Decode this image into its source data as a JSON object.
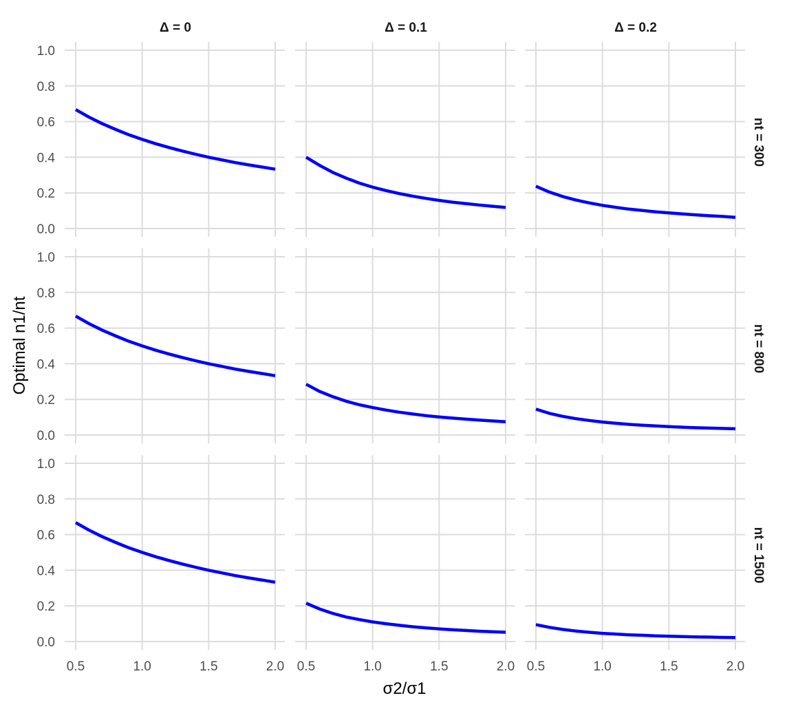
{
  "chart_data": {
    "type": "line",
    "facet_layout": "grid",
    "colors": {
      "line": "#0000ff",
      "grid": "#dcdcdc",
      "background": "#ffffff"
    },
    "xlabel": "σ2/σ1",
    "ylabel": "Optimal n1/nt",
    "xlim": [
      0.5,
      2.0
    ],
    "ylim": [
      0.0,
      1.0
    ],
    "x_ticks": [
      "0.5",
      "1.0",
      "1.5",
      "2.0"
    ],
    "y_ticks": [
      "0.0",
      "0.2",
      "0.4",
      "0.6",
      "0.8",
      "1.0"
    ],
    "col_facets": [
      "Δ = 0",
      "Δ = 0.1",
      "Δ = 0.2"
    ],
    "row_facets": [
      "nt = 300",
      "nt = 800",
      "nt = 1500"
    ],
    "x": [
      0.5,
      0.6,
      0.7,
      0.8,
      0.9,
      1.0,
      1.1,
      1.2,
      1.3,
      1.4,
      1.5,
      1.6,
      1.7,
      1.8,
      1.9,
      2.0
    ],
    "panels": [
      {
        "row": 0,
        "col": 0,
        "values": [
          0.667,
          0.625,
          0.588,
          0.556,
          0.526,
          0.5,
          0.476,
          0.455,
          0.435,
          0.417,
          0.4,
          0.385,
          0.37,
          0.357,
          0.345,
          0.333
        ]
      },
      {
        "row": 0,
        "col": 1,
        "values": [
          0.4,
          0.355,
          0.315,
          0.283,
          0.255,
          0.232,
          0.213,
          0.196,
          0.182,
          0.169,
          0.158,
          0.148,
          0.14,
          0.132,
          0.125,
          0.118
        ]
      },
      {
        "row": 0,
        "col": 2,
        "values": [
          0.237,
          0.205,
          0.18,
          0.16,
          0.144,
          0.13,
          0.119,
          0.109,
          0.101,
          0.094,
          0.088,
          0.082,
          0.077,
          0.072,
          0.068,
          0.063
        ]
      },
      {
        "row": 1,
        "col": 0,
        "values": [
          0.667,
          0.625,
          0.588,
          0.556,
          0.526,
          0.5,
          0.476,
          0.455,
          0.435,
          0.417,
          0.4,
          0.385,
          0.37,
          0.357,
          0.345,
          0.333
        ]
      },
      {
        "row": 1,
        "col": 1,
        "values": [
          0.285,
          0.245,
          0.215,
          0.19,
          0.17,
          0.154,
          0.14,
          0.128,
          0.118,
          0.109,
          0.101,
          0.095,
          0.089,
          0.084,
          0.079,
          0.074
        ]
      },
      {
        "row": 1,
        "col": 2,
        "values": [
          0.145,
          0.122,
          0.105,
          0.092,
          0.082,
          0.073,
          0.066,
          0.06,
          0.055,
          0.051,
          0.047,
          0.044,
          0.041,
          0.039,
          0.037,
          0.035
        ]
      },
      {
        "row": 2,
        "col": 0,
        "values": [
          0.667,
          0.625,
          0.588,
          0.556,
          0.526,
          0.5,
          0.476,
          0.455,
          0.435,
          0.417,
          0.4,
          0.385,
          0.37,
          0.357,
          0.345,
          0.333
        ]
      },
      {
        "row": 2,
        "col": 1,
        "values": [
          0.215,
          0.183,
          0.158,
          0.138,
          0.123,
          0.11,
          0.1,
          0.091,
          0.083,
          0.077,
          0.071,
          0.066,
          0.062,
          0.058,
          0.055,
          0.052
        ]
      },
      {
        "row": 2,
        "col": 2,
        "values": [
          0.095,
          0.08,
          0.068,
          0.059,
          0.052,
          0.046,
          0.042,
          0.038,
          0.035,
          0.032,
          0.03,
          0.028,
          0.026,
          0.025,
          0.023,
          0.022
        ]
      }
    ]
  }
}
